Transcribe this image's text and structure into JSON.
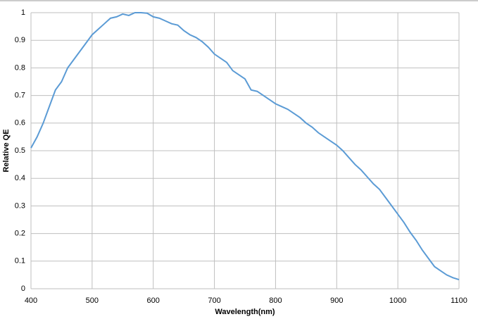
{
  "chart_data": {
    "type": "line",
    "x_label": "Wavelength(nm)",
    "y_label": "Relative QE",
    "x": [
      400,
      410,
      420,
      430,
      440,
      450,
      460,
      470,
      480,
      490,
      500,
      510,
      520,
      530,
      540,
      550,
      560,
      570,
      580,
      590,
      600,
      610,
      620,
      630,
      640,
      650,
      660,
      670,
      680,
      690,
      700,
      710,
      720,
      730,
      740,
      750,
      760,
      770,
      780,
      790,
      800,
      810,
      820,
      830,
      840,
      850,
      860,
      870,
      880,
      890,
      900,
      910,
      920,
      930,
      940,
      950,
      960,
      970,
      980,
      990,
      1000,
      1010,
      1020,
      1030,
      1040,
      1050,
      1060,
      1070,
      1080,
      1090,
      1100
    ],
    "series": [
      {
        "name": "Relative QE",
        "color": "#5b9bd5",
        "values": [
          0.51,
          0.55,
          0.6,
          0.66,
          0.72,
          0.75,
          0.8,
          0.83,
          0.86,
          0.89,
          0.92,
          0.94,
          0.96,
          0.98,
          0.985,
          0.995,
          0.99,
          1.0,
          1.0,
          0.998,
          0.985,
          0.98,
          0.97,
          0.96,
          0.955,
          0.935,
          0.92,
          0.91,
          0.895,
          0.875,
          0.85,
          0.835,
          0.82,
          0.79,
          0.775,
          0.76,
          0.72,
          0.715,
          0.7,
          0.685,
          0.67,
          0.66,
          0.65,
          0.635,
          0.62,
          0.6,
          0.585,
          0.565,
          0.55,
          0.535,
          0.52,
          0.5,
          0.475,
          0.45,
          0.43,
          0.405,
          0.38,
          0.36,
          0.33,
          0.3,
          0.27,
          0.24,
          0.205,
          0.175,
          0.14,
          0.11,
          0.08,
          0.065,
          0.05,
          0.04,
          0.033
        ]
      }
    ],
    "xlim": [
      400,
      1100
    ],
    "xticks": [
      400,
      500,
      600,
      700,
      800,
      900,
      1000,
      1100
    ],
    "ylim": [
      0,
      1
    ],
    "yticks": [
      0,
      0.1,
      0.2,
      0.3,
      0.4,
      0.5,
      0.6,
      0.7,
      0.8,
      0.9,
      1
    ],
    "grid": true
  }
}
